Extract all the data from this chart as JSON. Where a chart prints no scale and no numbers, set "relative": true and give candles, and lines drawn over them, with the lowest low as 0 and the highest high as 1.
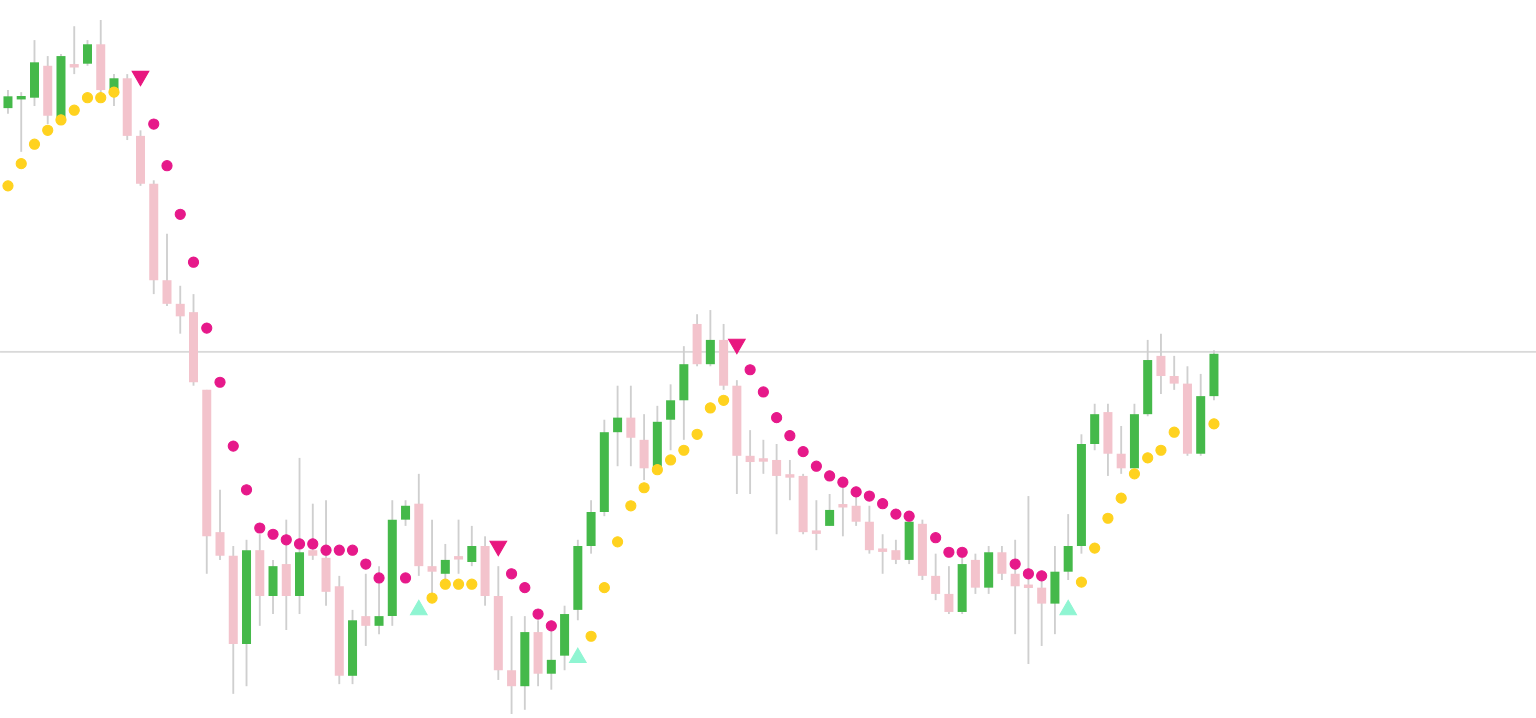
{
  "chart_data": {
    "type": "candlestick",
    "relative": true,
    "categories": [
      null,
      null,
      null,
      null,
      null,
      null,
      null,
      null,
      null,
      null,
      null,
      null,
      null,
      null,
      null,
      null,
      null,
      null,
      null,
      null,
      null,
      null,
      null,
      null,
      null,
      null,
      null,
      null,
      null,
      null,
      null,
      null,
      null,
      null,
      null,
      null,
      null,
      null,
      null,
      null,
      null,
      null,
      null,
      null,
      null,
      null,
      null,
      null,
      null,
      null,
      null,
      null,
      null,
      null,
      null,
      null,
      null,
      null,
      null,
      null,
      null,
      null,
      null,
      null,
      null,
      null,
      null,
      null,
      null,
      null,
      null,
      null,
      null,
      null,
      null,
      null,
      null,
      null,
      null,
      null,
      null,
      null,
      null,
      null,
      null,
      null,
      null,
      null,
      null,
      null,
      null,
      null
    ],
    "ohlc": [
      [
        0.873,
        0.899,
        0.865,
        0.89
      ],
      [
        0.888,
        0.896,
        0.81,
        0.89
      ],
      [
        0.888,
        0.971,
        0.876,
        0.939
      ],
      [
        0.934,
        0.948,
        0.85,
        0.862
      ],
      [
        0.859,
        0.951,
        0.859,
        0.948
      ],
      [
        0.937,
        0.991,
        0.922,
        0.934
      ],
      [
        0.937,
        0.971,
        0.934,
        0.965
      ],
      [
        0.965,
        1,
        0.893,
        0.899
      ],
      [
        0.899,
        0.922,
        0.876,
        0.916
      ],
      [
        0.916,
        0.922,
        0.827,
        0.833
      ],
      [
        0.833,
        0.841,
        0.761,
        0.764
      ],
      [
        0.764,
        0.769,
        0.605,
        0.625
      ],
      [
        0.625,
        0.692,
        0.588,
        0.591
      ],
      [
        0.591,
        0.617,
        0.548,
        0.573
      ],
      [
        0.579,
        0.605,
        0.473,
        0.478
      ],
      [
        0.467,
        0.467,
        0.202,
        0.256
      ],
      [
        0.262,
        0.323,
        0.222,
        0.228
      ],
      [
        0.228,
        0.242,
        0.029,
        0.101
      ],
      [
        0.101,
        0.251,
        0.04,
        0.236
      ],
      [
        0.236,
        0.259,
        0.127,
        0.17
      ],
      [
        0.17,
        0.222,
        0.144,
        0.213
      ],
      [
        0.216,
        0.28,
        0.121,
        0.17
      ],
      [
        0.17,
        0.369,
        0.144,
        0.233
      ],
      [
        0.236,
        0.303,
        0.222,
        0.228
      ],
      [
        0.225,
        0.308,
        0.156,
        0.176
      ],
      [
        0.184,
        0.199,
        0.043,
        0.055
      ],
      [
        0.055,
        0.15,
        0.043,
        0.135
      ],
      [
        0.141,
        0.202,
        0.098,
        0.127
      ],
      [
        0.127,
        0.213,
        0.115,
        0.141
      ],
      [
        0.141,
        0.308,
        0.127,
        0.28
      ],
      [
        0.28,
        0.308,
        0.271,
        0.3
      ],
      [
        0.303,
        0.346,
        0.199,
        0.213
      ],
      [
        0.213,
        0.28,
        0.173,
        0.205
      ],
      [
        0.202,
        0.245,
        0.193,
        0.222
      ],
      [
        0.225,
        0.28,
        0.202,
        0.225
      ],
      [
        0.219,
        0.271,
        0.213,
        0.242
      ],
      [
        0.242,
        0.256,
        0.156,
        0.17
      ],
      [
        0.17,
        0.213,
        0.049,
        0.063
      ],
      [
        0.063,
        0.141,
        0,
        0.04
      ],
      [
        0.04,
        0.141,
        0.006,
        0.118
      ],
      [
        0.118,
        0.135,
        0.04,
        0.058
      ],
      [
        0.058,
        0.127,
        0.035,
        0.078
      ],
      [
        0.084,
        0.156,
        0.063,
        0.144
      ],
      [
        0.15,
        0.251,
        0.135,
        0.242
      ],
      [
        0.242,
        0.308,
        0.231,
        0.291
      ],
      [
        0.291,
        0.424,
        0.285,
        0.406
      ],
      [
        0.406,
        0.473,
        0.357,
        0.427
      ],
      [
        0.427,
        0.473,
        0.357,
        0.398
      ],
      [
        0.395,
        0.432,
        0.337,
        0.354
      ],
      [
        0.354,
        0.444,
        0.354,
        0.421
      ],
      [
        0.424,
        0.475,
        0.38,
        0.452
      ],
      [
        0.452,
        0.53,
        0.395,
        0.504
      ],
      [
        0.562,
        0.576,
        0.501,
        0.504
      ],
      [
        0.504,
        0.582,
        0.501,
        0.539
      ],
      [
        0.539,
        0.562,
        0.467,
        0.473
      ],
      [
        0.473,
        0.481,
        0.317,
        0.372
      ],
      [
        0.372,
        0.409,
        0.317,
        0.363
      ],
      [
        0.366,
        0.395,
        0.346,
        0.366
      ],
      [
        0.366,
        0.389,
        0.259,
        0.343
      ],
      [
        0.343,
        0.366,
        0.308,
        0.343
      ],
      [
        0.343,
        0.346,
        0.259,
        0.262
      ],
      [
        0.262,
        0.308,
        0.236,
        0.262
      ],
      [
        0.271,
        0.317,
        0.271,
        0.294
      ],
      [
        0.3,
        0.329,
        0.256,
        0.3
      ],
      [
        0.3,
        0.317,
        0.271,
        0.277
      ],
      [
        0.277,
        0.3,
        0.231,
        0.236
      ],
      [
        0.236,
        0.259,
        0.202,
        0.236
      ],
      [
        0.236,
        0.251,
        0.216,
        0.222
      ],
      [
        0.222,
        0.277,
        0.216,
        0.277
      ],
      [
        0.274,
        0.28,
        0.193,
        0.199
      ],
      [
        0.199,
        0.231,
        0.164,
        0.173
      ],
      [
        0.173,
        0.213,
        0.144,
        0.147
      ],
      [
        0.147,
        0.231,
        0.144,
        0.216
      ],
      [
        0.222,
        0.231,
        0.173,
        0.182
      ],
      [
        0.182,
        0.242,
        0.173,
        0.233
      ],
      [
        0.233,
        0.242,
        0.193,
        0.202
      ],
      [
        0.202,
        0.251,
        0.115,
        0.184
      ],
      [
        0.184,
        0.314,
        0.072,
        0.184
      ],
      [
        0.182,
        0.193,
        0.098,
        0.159
      ],
      [
        0.159,
        0.242,
        0.115,
        0.205
      ],
      [
        0.205,
        0.288,
        0.193,
        0.242
      ],
      [
        0.242,
        0.403,
        0.231,
        0.389
      ],
      [
        0.389,
        0.447,
        0.38,
        0.432
      ],
      [
        0.435,
        0.447,
        0.343,
        0.375
      ],
      [
        0.375,
        0.415,
        0.346,
        0.354
      ],
      [
        0.354,
        0.447,
        0.354,
        0.432
      ],
      [
        0.432,
        0.539,
        0.429,
        0.51
      ],
      [
        0.516,
        0.548,
        0.461,
        0.487
      ],
      [
        0.487,
        0.516,
        0.467,
        0.476
      ],
      [
        0.476,
        0.501,
        0.372,
        0.375
      ],
      [
        0.375,
        0.49,
        0.372,
        0.458
      ],
      [
        0.458,
        0.524,
        0.452,
        0.519
      ]
    ],
    "series": [
      {
        "type": "scatter",
        "marker": "circle",
        "color": "#ffd21f",
        "values": [
          0.761,
          0.793,
          0.821,
          0.841,
          0.856,
          0.87,
          0.888,
          0.888,
          0.896,
          null,
          null,
          null,
          null,
          null,
          null,
          null,
          null,
          null,
          null,
          null,
          null,
          null,
          null,
          null,
          null,
          null,
          null,
          null,
          null,
          null,
          null,
          null,
          0.167,
          0.187,
          0.187,
          0.187,
          null,
          null,
          null,
          null,
          null,
          null,
          null,
          null,
          0.112,
          0.182,
          0.248,
          0.3,
          0.326,
          0.352,
          0.366,
          0.38,
          0.403,
          0.441,
          0.452,
          null,
          null,
          null,
          null,
          null,
          null,
          null,
          null,
          null,
          null,
          null,
          null,
          null,
          null,
          null,
          null,
          null,
          null,
          null,
          null,
          null,
          null,
          null,
          null,
          null,
          null,
          0.19,
          0.239,
          0.282,
          0.311,
          0.346,
          0.369,
          0.38,
          0.406,
          null,
          null,
          0.418
        ]
      },
      {
        "type": "scatter",
        "marker": "circle",
        "color": "#e6198a",
        "values": [
          null,
          null,
          null,
          null,
          null,
          null,
          null,
          null,
          null,
          null,
          null,
          0.85,
          0.79,
          0.72,
          0.651,
          0.556,
          0.478,
          0.386,
          0.323,
          0.268,
          0.259,
          0.251,
          0.245,
          0.245,
          0.236,
          0.236,
          0.236,
          0.216,
          0.196,
          null,
          0.196,
          null,
          null,
          null,
          null,
          null,
          null,
          null,
          0.202,
          0.182,
          0.144,
          0.127,
          null,
          null,
          null,
          null,
          null,
          null,
          null,
          null,
          null,
          null,
          null,
          null,
          null,
          null,
          0.496,
          0.464,
          0.427,
          0.401,
          0.378,
          0.357,
          0.343,
          0.334,
          0.32,
          0.314,
          0.303,
          0.288,
          0.285,
          null,
          0.254,
          0.233,
          0.233,
          null,
          null,
          null,
          0.216,
          0.202,
          0.199,
          null,
          null,
          null,
          null,
          null,
          null,
          null,
          null,
          null,
          null,
          null,
          null,
          null
        ]
      },
      {
        "type": "scatter",
        "marker": "triangle",
        "color": "#8ff5d2",
        "values": [
          null,
          null,
          null,
          null,
          null,
          null,
          null,
          null,
          null,
          null,
          null,
          null,
          null,
          null,
          null,
          null,
          null,
          null,
          null,
          null,
          null,
          null,
          null,
          null,
          null,
          null,
          null,
          null,
          null,
          null,
          null,
          0.15,
          null,
          null,
          null,
          null,
          null,
          null,
          null,
          null,
          null,
          null,
          null,
          0.081,
          null,
          null,
          null,
          null,
          null,
          null,
          null,
          null,
          null,
          null,
          null,
          null,
          null,
          null,
          null,
          null,
          null,
          null,
          null,
          null,
          null,
          null,
          null,
          null,
          null,
          null,
          null,
          null,
          null,
          null,
          null,
          null,
          null,
          null,
          null,
          null,
          0.15,
          null,
          null,
          null,
          null,
          null,
          null,
          null,
          null,
          null,
          null,
          null
        ]
      },
      {
        "type": "scatter",
        "marker": "triangle",
        "color": "#e8177f",
        "values": [
          null,
          null,
          null,
          null,
          null,
          null,
          null,
          null,
          null,
          null,
          0.919,
          null,
          null,
          null,
          null,
          null,
          null,
          null,
          null,
          null,
          null,
          null,
          null,
          null,
          null,
          null,
          null,
          null,
          null,
          null,
          null,
          null,
          null,
          null,
          null,
          null,
          null,
          0.242,
          null,
          null,
          null,
          null,
          null,
          null,
          null,
          null,
          null,
          null,
          null,
          null,
          null,
          null,
          null,
          null,
          null,
          0.533,
          null,
          null,
          null,
          null,
          null,
          null,
          null,
          null,
          null,
          null,
          null,
          null,
          null,
          null,
          null,
          null,
          null,
          null,
          null,
          null,
          null,
          null,
          null,
          null,
          null,
          null,
          null,
          null,
          null,
          null,
          null,
          null,
          null,
          null,
          null,
          null
        ]
      }
    ],
    "ref_lines": [
      {
        "axis": "y",
        "value": 0.522,
        "color": "#d9d9d9"
      }
    ]
  }
}
